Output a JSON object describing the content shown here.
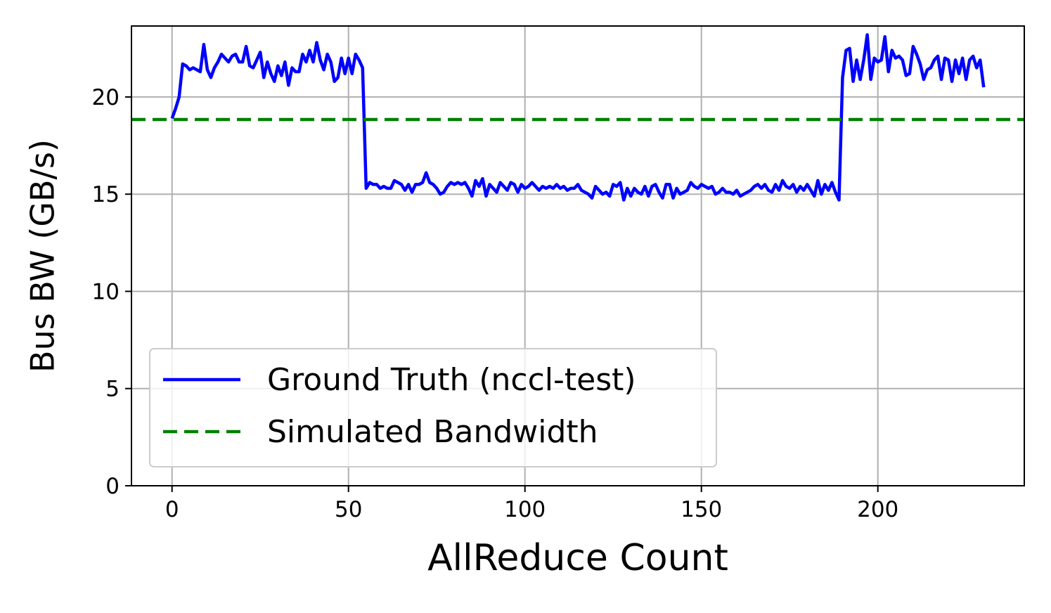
{
  "chart_data": {
    "type": "line",
    "xlabel": "AllReduce Count",
    "ylabel": "Bus BW (GB/s)",
    "xlim": [
      -11.5,
      241.5
    ],
    "ylim": [
      0,
      23.65
    ],
    "xticks": [
      0,
      50,
      100,
      150,
      200
    ],
    "yticks": [
      0,
      5,
      10,
      15,
      20
    ],
    "grid": true,
    "legend": "lower left",
    "series": [
      {
        "name": "Ground Truth (nccl-test)",
        "color": "#0000ff",
        "x": [
          0,
          1,
          2,
          3,
          4,
          5,
          6,
          7,
          8,
          9,
          10,
          11,
          12,
          13,
          14,
          15,
          16,
          17,
          18,
          19,
          20,
          21,
          22,
          23,
          24,
          25,
          26,
          27,
          28,
          29,
          30,
          31,
          32,
          33,
          34,
          35,
          36,
          37,
          38,
          39,
          40,
          41,
          42,
          43,
          44,
          45,
          46,
          47,
          48,
          49,
          50,
          51,
          52,
          53,
          54,
          55,
          56,
          57,
          58,
          59,
          60,
          61,
          62,
          63,
          64,
          65,
          66,
          67,
          68,
          69,
          70,
          71,
          72,
          73,
          74,
          75,
          76,
          77,
          78,
          79,
          80,
          81,
          82,
          83,
          84,
          85,
          86,
          87,
          88,
          89,
          90,
          91,
          92,
          93,
          94,
          95,
          96,
          97,
          98,
          99,
          100,
          101,
          102,
          103,
          104,
          105,
          106,
          107,
          108,
          109,
          110,
          111,
          112,
          113,
          114,
          115,
          116,
          117,
          118,
          119,
          120,
          121,
          122,
          123,
          124,
          125,
          126,
          127,
          128,
          129,
          130,
          131,
          132,
          133,
          134,
          135,
          136,
          137,
          138,
          139,
          140,
          141,
          142,
          143,
          144,
          145,
          146,
          147,
          148,
          149,
          150,
          151,
          152,
          153,
          154,
          155,
          156,
          157,
          158,
          159,
          160,
          161,
          162,
          163,
          164,
          165,
          166,
          167,
          168,
          169,
          170,
          171,
          172,
          173,
          174,
          175,
          176,
          177,
          178,
          179,
          180,
          181,
          182,
          183,
          184,
          185,
          186,
          187,
          188,
          189,
          190,
          191,
          192,
          193,
          194,
          195,
          196,
          197,
          198,
          199,
          200,
          201,
          202,
          203,
          204,
          205,
          206,
          207,
          208,
          209,
          210,
          211,
          212,
          213,
          214,
          215,
          216,
          217,
          218,
          219,
          220,
          221,
          222,
          223,
          224,
          225,
          226,
          227,
          228,
          229,
          230
        ],
        "values": [
          18.9,
          19.4,
          20.0,
          21.7,
          21.6,
          21.4,
          21.5,
          21.4,
          21.3,
          22.7,
          21.4,
          21.0,
          21.5,
          21.8,
          22.2,
          22.0,
          21.8,
          22.1,
          22.2,
          21.8,
          21.8,
          22.6,
          21.6,
          21.5,
          21.9,
          22.3,
          21.0,
          21.8,
          21.2,
          20.8,
          21.6,
          21.1,
          21.8,
          20.6,
          21.5,
          21.3,
          21.3,
          22.2,
          21.8,
          22.4,
          21.8,
          22.8,
          21.9,
          21.4,
          22.2,
          21.8,
          20.8,
          21.0,
          22.0,
          21.2,
          22.0,
          21.2,
          22.2,
          21.9,
          21.5,
          15.3,
          15.6,
          15.5,
          15.5,
          15.3,
          15.4,
          15.3,
          15.3,
          15.7,
          15.6,
          15.5,
          15.2,
          15.5,
          15.1,
          15.5,
          15.5,
          15.6,
          16.1,
          15.6,
          15.5,
          15.3,
          15.0,
          15.1,
          15.4,
          15.6,
          15.5,
          15.6,
          15.5,
          15.6,
          15.3,
          14.9,
          15.7,
          15.4,
          15.8,
          14.9,
          15.5,
          15.3,
          15.1,
          15.6,
          15.4,
          15.2,
          15.6,
          15.5,
          15.1,
          15.5,
          15.3,
          15.4,
          15.6,
          15.4,
          15.2,
          15.4,
          15.3,
          15.4,
          15.3,
          15.5,
          15.3,
          15.4,
          15.2,
          15.3,
          15.3,
          15.5,
          15.2,
          15.1,
          15.0,
          14.8,
          15.4,
          15.2,
          15.0,
          15.1,
          14.9,
          15.5,
          15.4,
          15.6,
          14.7,
          15.3,
          14.9,
          15.3,
          15.1,
          15.0,
          15.4,
          14.9,
          15.4,
          15.5,
          15.1,
          14.8,
          15.5,
          15.5,
          14.8,
          15.3,
          15.0,
          15.1,
          15.2,
          15.6,
          15.4,
          15.3,
          15.5,
          15.4,
          15.3,
          15.4,
          15.0,
          15.1,
          15.3,
          15.1,
          15.1,
          15.0,
          15.2,
          14.9,
          15.0,
          15.1,
          15.2,
          15.4,
          15.5,
          15.3,
          15.5,
          15.2,
          15.1,
          15.5,
          15.2,
          15.7,
          15.4,
          15.3,
          15.5,
          15.1,
          15.4,
          15.2,
          15.5,
          15.2,
          14.9,
          15.7,
          15.0,
          15.5,
          15.2,
          15.6,
          15.1,
          14.7,
          21.0,
          22.4,
          22.5,
          20.8,
          21.9,
          20.9,
          21.9,
          23.2,
          20.9,
          22.0,
          21.8,
          21.9,
          23.1,
          21.3,
          22.4,
          22.0,
          22.1,
          21.9,
          21.1,
          21.2,
          22.6,
          22.2,
          21.7,
          20.9,
          21.4,
          21.5,
          21.9,
          22.1,
          20.9,
          22.0,
          21.9,
          20.8,
          21.9,
          21.2,
          22.0,
          20.9,
          21.9,
          22.1,
          21.5,
          21.9,
          20.5
        ]
      },
      {
        "name": "Simulated Bandwidth",
        "color": "#008000",
        "dashed": true,
        "value": 18.84
      }
    ]
  }
}
